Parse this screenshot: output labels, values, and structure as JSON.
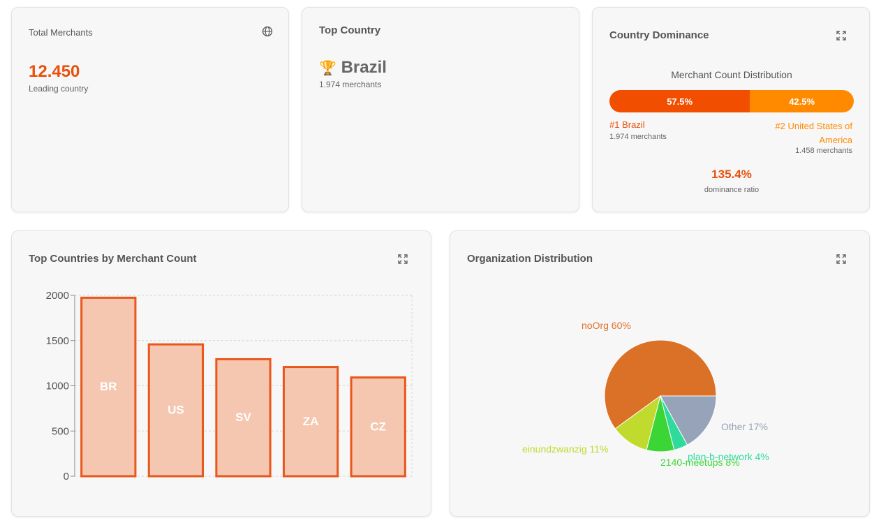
{
  "total_merchants": {
    "title": "Total Merchants",
    "value": "12.450",
    "subtitle": "Leading country",
    "icon": "globe-icon"
  },
  "top_country": {
    "title": "Top Country",
    "trophy": "🏆",
    "name": "Brazil",
    "merchants": "1.974 merchants"
  },
  "country_dominance": {
    "title": "Country Dominance",
    "distribution_title": "Merchant Count Distribution",
    "first_pct": "57.5%",
    "second_pct": "42.5%",
    "first_fraction": 57.5,
    "second_fraction": 42.5,
    "first_label": "#1 Brazil",
    "first_merchants": "1.974 merchants",
    "second_label": "#2 United States of America",
    "second_merchants": "1.458 merchants",
    "ratio": "135.4%",
    "ratio_label": "dominance ratio",
    "colors": {
      "first": "#f24e00",
      "second": "#ff8a00"
    }
  },
  "bar_card": {
    "title": "Top Countries by Merchant Count",
    "chart_data": {
      "type": "bar",
      "categories": [
        "BR",
        "US",
        "SV",
        "ZA",
        "CZ"
      ],
      "values": [
        1974,
        1458,
        1294,
        1208,
        1092
      ],
      "yticks": [
        "0",
        "500",
        "1000",
        "1500",
        "2000"
      ],
      "ylim": [
        0,
        2000
      ],
      "colors": {
        "fill": "#f5c6b0",
        "stroke": "#e8571c"
      }
    }
  },
  "pie_card": {
    "title": "Organization Distribution",
    "chart_data": {
      "type": "pie",
      "slices": [
        {
          "label": "noOrg 60%",
          "value": 60,
          "color": "#db7127"
        },
        {
          "label": "einundzwanzig 11%",
          "value": 11,
          "color": "#c0da2e"
        },
        {
          "label": "2140-meetups 8%",
          "value": 8,
          "color": "#3bd636"
        },
        {
          "label": "plan-b-network 4%",
          "value": 4,
          "color": "#2edb9c"
        },
        {
          "label": "Other 17%",
          "value": 17,
          "color": "#96a3b8"
        }
      ]
    }
  }
}
